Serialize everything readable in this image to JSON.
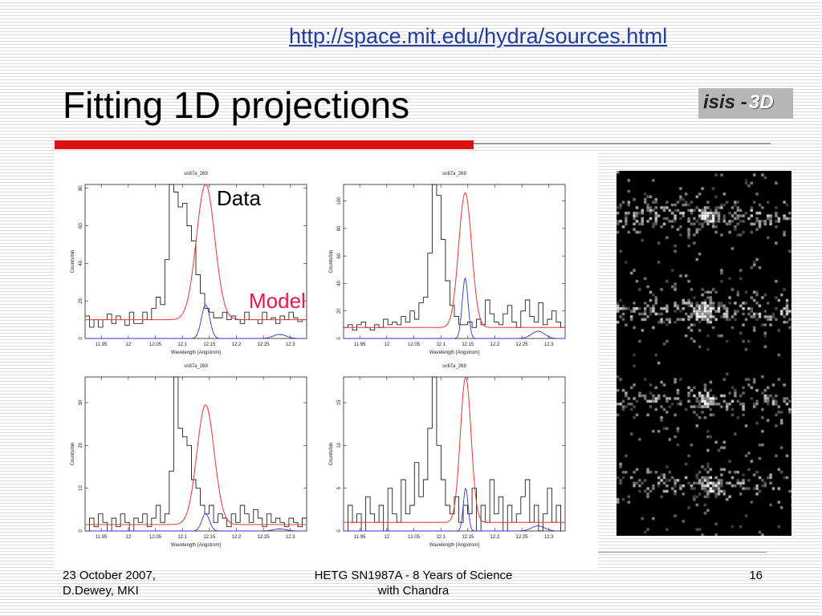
{
  "slide": {
    "link": "http://space.mit.edu/hydra/sources.html",
    "title": "Fitting 1D projections",
    "logo": {
      "text_a": "isis -",
      "text_b": "3D"
    },
    "label_data": "Data",
    "label_model": "Model",
    "footer": {
      "left_line1": "23 October 2007,",
      "left_line2": "D.Dewey, MKI",
      "center_line1": "HETG SN1987A - 8 Years of Science",
      "center_line2": "with Chandra",
      "page": "16"
    },
    "colors": {
      "data": "#222222",
      "model": "#ee3333",
      "line_comp": "#3333cc",
      "accent_bar": "#dd1111"
    }
  },
  "chart_data": [
    {
      "type": "line",
      "title": "sn87a_269",
      "xlabel": "Wavelength [Angstrom]",
      "ylabel": "Counts/bin",
      "xlim": [
        11.92,
        12.33
      ],
      "ylim": [
        0,
        82
      ],
      "xticks": [
        "11.95",
        "12",
        "12.05",
        "12.1",
        "12.15",
        "12.2",
        "12.25",
        "12.3"
      ],
      "yticks": [
        "0",
        "20",
        "40",
        "60",
        "80"
      ],
      "peak": 12.143,
      "width": 0.017,
      "amp": 72,
      "base": 10,
      "comp_amp": 18,
      "series": [
        {
          "name": "Data",
          "values": [
            12,
            6,
            10,
            6,
            10,
            13,
            8,
            12,
            10,
            7,
            14,
            8,
            8,
            14,
            10,
            16,
            22,
            18,
            42,
            82,
            78,
            70,
            72,
            60,
            52,
            34,
            24,
            16,
            14,
            11,
            11,
            14,
            10,
            12,
            10,
            8,
            14,
            10,
            10,
            8,
            14,
            10,
            11,
            8,
            12,
            10,
            14,
            11,
            9,
            10
          ]
        }
      ]
    },
    {
      "type": "line",
      "title": "sn87a_269",
      "xlabel": "Wavelength [Angstrom]",
      "ylabel": "Counts/bin",
      "xlim": [
        11.92,
        12.33
      ],
      "ylim": [
        0,
        112
      ],
      "xticks": [
        "11.95",
        "12",
        "12.05",
        "12.1",
        "12.15",
        "12.2",
        "12.25",
        "12.3"
      ],
      "yticks": [
        "0",
        "20",
        "40",
        "60",
        "80",
        "100"
      ],
      "peak": 12.145,
      "width": 0.012,
      "amp": 98,
      "base": 8,
      "comp_amp": 44,
      "series": [
        {
          "name": "Data",
          "values": [
            8,
            10,
            6,
            10,
            12,
            8,
            6,
            10,
            8,
            14,
            10,
            12,
            10,
            16,
            12,
            20,
            14,
            26,
            30,
            62,
            112,
            104,
            72,
            42,
            24,
            16,
            10,
            10,
            12,
            8,
            14,
            10,
            28,
            18,
            12,
            10,
            18,
            24,
            12,
            8,
            20,
            28,
            16,
            12,
            26,
            10,
            14,
            20,
            12,
            8
          ]
        }
      ]
    },
    {
      "type": "line",
      "title": "sn87a_269",
      "xlabel": "Wavelength [Angstrom]",
      "ylabel": "Counts/bin",
      "xlim": [
        11.92,
        12.33
      ],
      "ylim": [
        0,
        36
      ],
      "xticks": [
        "11.95",
        "12",
        "12.05",
        "12.1",
        "12.15",
        "12.2",
        "12.25",
        "12.3"
      ],
      "yticks": [
        "0",
        "10",
        "20",
        "30"
      ],
      "peak": 12.143,
      "width": 0.016,
      "amp": 28,
      "base": 1.5,
      "comp_amp": 4,
      "series": [
        {
          "name": "Data",
          "values": [
            0,
            3,
            1,
            4,
            2,
            0,
            3,
            1,
            4,
            2,
            0,
            3,
            2,
            4,
            1,
            3,
            6,
            2,
            4,
            14,
            36,
            24,
            22,
            20,
            12,
            10,
            6,
            4,
            6,
            2,
            4,
            3,
            1,
            4,
            2,
            6,
            4,
            2,
            5,
            3,
            1,
            4,
            2,
            3,
            2,
            1,
            3,
            2,
            1,
            3
          ]
        }
      ]
    },
    {
      "type": "line",
      "title": "sn87a_269",
      "xlabel": "Wavelength [Angstrom]",
      "ylabel": "Counts/bin",
      "xlim": [
        11.92,
        12.33
      ],
      "ylim": [
        0,
        18
      ],
      "xticks": [
        "11.95",
        "12",
        "12.05",
        "12.1",
        "12.15",
        "12.2",
        "12.25",
        "12.3"
      ],
      "yticks": [
        "0",
        "5",
        "10",
        "15"
      ],
      "peak": 12.146,
      "width": 0.01,
      "amp": 17,
      "base": 1,
      "comp_amp": 5,
      "series": [
        {
          "name": "Data",
          "values": [
            0,
            3,
            1,
            2,
            0,
            4,
            2,
            1,
            3,
            0,
            5,
            2,
            1,
            6,
            2,
            3,
            8,
            4,
            6,
            12,
            18,
            10,
            6,
            3,
            2,
            4,
            1,
            3,
            2,
            5,
            0,
            3,
            1,
            6,
            2,
            4,
            0,
            3,
            1,
            2,
            4,
            6,
            1,
            3,
            0,
            2,
            5,
            1,
            3,
            0
          ]
        }
      ]
    }
  ]
}
